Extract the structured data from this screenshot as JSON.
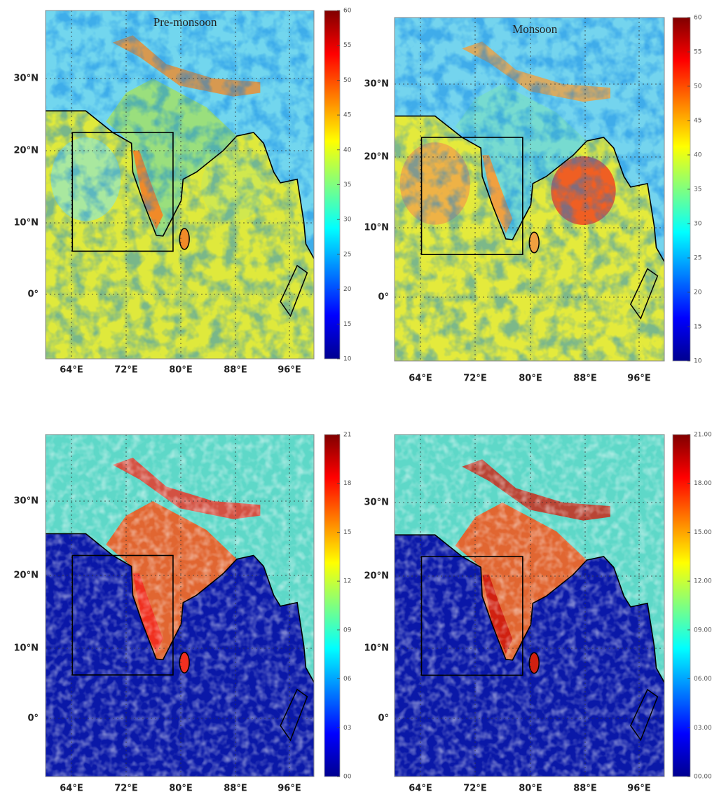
{
  "panels": [
    {
      "title": "Pre-monsoon",
      "lat_labels": [
        "30°N",
        "20°N",
        "10°N",
        "0°"
      ],
      "lon_labels": [
        "64°E",
        "72°E",
        "80°E",
        "88°E",
        "96°E"
      ],
      "colorbar_ticks": [
        "10",
        "15",
        "20",
        "25",
        "30",
        "35",
        "40",
        "45",
        "50",
        "55",
        "60"
      ]
    },
    {
      "title": "Monsoon",
      "lat_labels": [
        "30°N",
        "20°N",
        "10°N",
        "0°"
      ],
      "lon_labels": [
        "64°E",
        "72°E",
        "80°E",
        "88°E",
        "96°E"
      ],
      "colorbar_ticks": [
        "10",
        "15",
        "20",
        "25",
        "30",
        "35",
        "40",
        "45",
        "50",
        "55",
        "60"
      ]
    },
    {
      "lat_labels": [
        "30°N",
        "20°N",
        "10°N",
        "0°"
      ],
      "lon_labels": [
        "64°E",
        "72°E",
        "80°E",
        "88°E",
        "96°E"
      ],
      "colorbar_ticks": [
        "00",
        "03",
        "06",
        "09",
        "12",
        "15",
        "18",
        "21"
      ]
    },
    {
      "lat_labels": [
        "30°N",
        "20°N",
        "10°N",
        "0°"
      ],
      "lon_labels": [
        "64°E",
        "72°E",
        "80°E",
        "88°E",
        "96°E"
      ],
      "colorbar_ticks": [
        "00.00",
        "03.00",
        "06.00",
        "09.00",
        "12.00",
        "15.00",
        "18.00",
        "21.00"
      ]
    }
  ]
}
